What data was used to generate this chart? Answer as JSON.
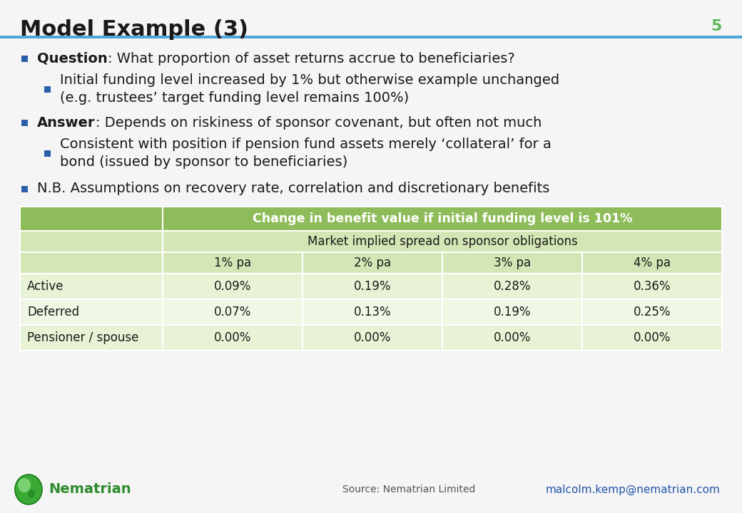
{
  "title": "Model Example (3)",
  "title_fontsize": 22,
  "slide_number": "5",
  "slide_number_color": "#5cb85c",
  "title_color": "#1a1a1a",
  "header_line_color": "#4da6d9",
  "background_color": "#f5f5f5",
  "bullet_color": "#2b5fa8",
  "bullet_points": [
    {
      "level": 0,
      "bold_part": "Question",
      "rest": ": What proportion of asset returns accrue to beneficiaries?",
      "fontsize": 14
    },
    {
      "level": 1,
      "bold_part": "",
      "rest": "Initial funding level increased by 1% but otherwise example unchanged\n(e.g. trustees’ target funding level remains 100%)",
      "fontsize": 14
    },
    {
      "level": 0,
      "bold_part": "Answer",
      "rest": ": Depends on riskiness of sponsor covenant, but often not much",
      "fontsize": 14
    },
    {
      "level": 1,
      "bold_part": "",
      "rest": "Consistent with position if pension fund assets merely ‘collateral’ for a\nbond (issued by sponsor to beneficiaries)",
      "fontsize": 14
    },
    {
      "level": 0,
      "bold_part": "",
      "rest": "N.B. Assumptions on recovery rate, correlation and discretionary benefits",
      "fontsize": 14
    }
  ],
  "table": {
    "header_bg": "#8fbc5a",
    "header_text_color": "#ffffff",
    "subheader_bg": "#d4e6b5",
    "subheader_text_color": "#1a1a1a",
    "row_bg_even": "#e8f3d5",
    "row_bg_odd": "#f0f7e5",
    "border_color": "#ffffff",
    "main_header": "Change in benefit value if initial funding level is 101%",
    "sub_header": "Market implied spread on sponsor obligations",
    "col_headers": [
      "1% pa",
      "2% pa",
      "3% pa",
      "4% pa"
    ],
    "rows": [
      [
        "Active",
        "0.09%",
        "0.19%",
        "0.28%",
        "0.36%"
      ],
      [
        "Deferred",
        "0.07%",
        "0.13%",
        "0.19%",
        "0.25%"
      ],
      [
        "Pensioner / spouse",
        "0.00%",
        "0.00%",
        "0.00%",
        "0.00%"
      ]
    ],
    "data_fontsize": 12,
    "header_fontsize": 12.5
  },
  "footer": {
    "logo_text": "Nematrian",
    "logo_color": "#2e8b2e",
    "source_text": "Source: Nematrian Limited",
    "source_color": "#555555",
    "email_text": "malcolm.kemp@nematrian.com",
    "email_color": "#2255aa"
  }
}
